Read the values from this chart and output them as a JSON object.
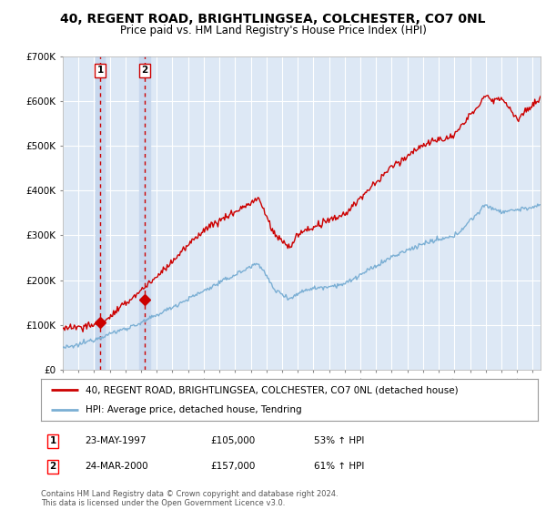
{
  "title": "40, REGENT ROAD, BRIGHTLINGSEA, COLCHESTER, CO7 0NL",
  "subtitle": "Price paid vs. HM Land Registry's House Price Index (HPI)",
  "title_fontsize": 10,
  "subtitle_fontsize": 8.5,
  "background_color": "#ffffff",
  "plot_bg_color": "#dde8f5",
  "grid_color": "#ffffff",
  "ylim": [
    0,
    700000
  ],
  "yticks": [
    0,
    100000,
    200000,
    300000,
    400000,
    500000,
    600000,
    700000
  ],
  "ytick_labels": [
    "£0",
    "£100K",
    "£200K",
    "£300K",
    "£400K",
    "£500K",
    "£600K",
    "£700K"
  ],
  "sale1_date": 1997.38,
  "sale1_price": 105000,
  "sale2_date": 2000.22,
  "sale2_price": 157000,
  "legend_line1": "40, REGENT ROAD, BRIGHTLINGSEA, COLCHESTER, CO7 0NL (detached house)",
  "legend_line2": "HPI: Average price, detached house, Tendring",
  "table_rows": [
    {
      "num": "1",
      "date": "23-MAY-1997",
      "price": "£105,000",
      "hpi": "53% ↑ HPI"
    },
    {
      "num": "2",
      "date": "24-MAR-2000",
      "price": "£157,000",
      "hpi": "61% ↑ HPI"
    }
  ],
  "footer": "Contains HM Land Registry data © Crown copyright and database right 2024.\nThis data is licensed under the Open Government Licence v3.0.",
  "price_line_color": "#cc0000",
  "hpi_line_color": "#7bafd4",
  "sale_marker_color": "#cc0000",
  "vline_color": "#cc0000",
  "shade_color": "#c8d8ee",
  "xmin": 1995,
  "xmax": 2025.5
}
